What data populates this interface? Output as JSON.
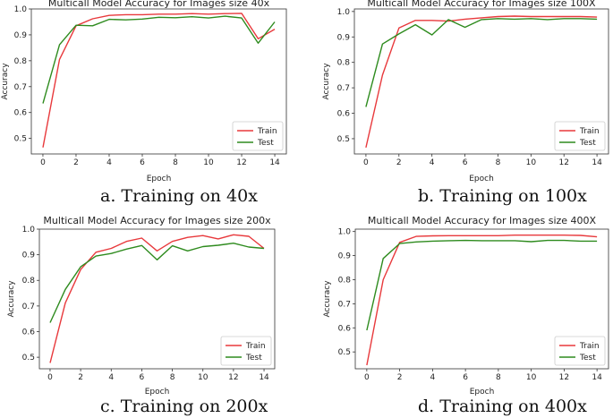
{
  "chart_data": [
    {
      "type": "line",
      "title": "Multicall Model Accuracy for Images size 40x",
      "xlabel": "Epoch",
      "ylabel": "Accuracy",
      "xlim": [
        -0.7,
        14.7
      ],
      "ylim": [
        0.44,
        1.0
      ],
      "xticks": [
        0,
        2,
        4,
        6,
        8,
        10,
        12,
        14
      ],
      "yticks": [
        0.5,
        0.6,
        0.7,
        0.8,
        0.9,
        1.0
      ],
      "ytick_labels": [
        "0.5",
        "0.6",
        "0.7",
        "0.8",
        "0.9",
        "1.0"
      ],
      "legend": "lower-right",
      "x": [
        0,
        1,
        2,
        3,
        4,
        5,
        6,
        7,
        8,
        9,
        10,
        11,
        12,
        13,
        14
      ],
      "series": [
        {
          "name": "Train",
          "color": "#e8393c",
          "values": [
            0.465,
            0.805,
            0.935,
            0.962,
            0.975,
            0.978,
            0.978,
            0.98,
            0.98,
            0.982,
            0.98,
            0.982,
            0.983,
            0.885,
            0.922
          ]
        },
        {
          "name": "Test",
          "color": "#2e8b1e",
          "values": [
            0.635,
            0.862,
            0.937,
            0.935,
            0.96,
            0.958,
            0.961,
            0.968,
            0.966,
            0.97,
            0.965,
            0.972,
            0.965,
            0.868,
            0.95
          ]
        }
      ],
      "caption": "a. Training on 40x"
    },
    {
      "type": "line",
      "title": "Multicall Model Accuracy for Images size 100X",
      "xlabel": "Epoch",
      "ylabel": "Accuracy",
      "xlim": [
        -0.7,
        14.7
      ],
      "ylim": [
        0.44,
        1.01
      ],
      "xticks": [
        0,
        2,
        4,
        6,
        8,
        10,
        12,
        14
      ],
      "yticks": [
        0.5,
        0.6,
        0.7,
        0.8,
        0.9,
        1.0
      ],
      "ytick_labels": [
        "0.5",
        "0.6",
        "0.7",
        "0.8",
        "0.9",
        "1.0"
      ],
      "legend": "lower-right",
      "x": [
        0,
        1,
        2,
        3,
        4,
        5,
        6,
        7,
        8,
        9,
        10,
        11,
        12,
        13,
        14
      ],
      "series": [
        {
          "name": "Train",
          "color": "#e8393c",
          "values": [
            0.465,
            0.75,
            0.935,
            0.965,
            0.965,
            0.962,
            0.97,
            0.975,
            0.98,
            0.982,
            0.98,
            0.98,
            0.98,
            0.98,
            0.978
          ]
        },
        {
          "name": "Test",
          "color": "#2e8b1e",
          "values": [
            0.625,
            0.872,
            0.912,
            0.948,
            0.908,
            0.968,
            0.938,
            0.968,
            0.972,
            0.97,
            0.972,
            0.968,
            0.972,
            0.972,
            0.97
          ]
        }
      ],
      "caption": "b. Training on 100x"
    },
    {
      "type": "line",
      "title": "Multicall Model Accuracy for Images size 200x",
      "xlabel": "Epoch",
      "ylabel": "Accuracy",
      "xlim": [
        -0.7,
        14.7
      ],
      "ylim": [
        0.455,
        1.0
      ],
      "xticks": [
        0,
        2,
        4,
        6,
        8,
        10,
        12,
        14
      ],
      "yticks": [
        0.5,
        0.6,
        0.7,
        0.8,
        0.9,
        1.0
      ],
      "ytick_labels": [
        "0.5",
        "0.6",
        "0.7",
        "0.8",
        "0.9",
        "1.0"
      ],
      "legend": "lower-right",
      "x": [
        0,
        1,
        2,
        3,
        4,
        5,
        6,
        7,
        8,
        9,
        10,
        11,
        12,
        13,
        14
      ],
      "series": [
        {
          "name": "Train",
          "color": "#e8393c",
          "values": [
            0.478,
            0.712,
            0.842,
            0.91,
            0.925,
            0.952,
            0.965,
            0.915,
            0.952,
            0.968,
            0.975,
            0.962,
            0.978,
            0.972,
            0.925
          ]
        },
        {
          "name": "Test",
          "color": "#2e8b1e",
          "values": [
            0.635,
            0.765,
            0.853,
            0.895,
            0.905,
            0.922,
            0.936,
            0.88,
            0.935,
            0.915,
            0.932,
            0.937,
            0.945,
            0.93,
            0.925
          ]
        }
      ],
      "caption": "c. Training on 200x"
    },
    {
      "type": "line",
      "title": "Multicall Model Accuracy for Images size 400X",
      "xlabel": "Epoch",
      "ylabel": "Accuracy",
      "xlim": [
        -0.7,
        14.7
      ],
      "ylim": [
        0.43,
        1.01
      ],
      "xticks": [
        0,
        2,
        4,
        6,
        8,
        10,
        12,
        14
      ],
      "yticks": [
        0.5,
        0.6,
        0.7,
        0.8,
        0.9,
        1.0
      ],
      "ytick_labels": [
        "0.5",
        "0.6",
        "0.7",
        "0.8",
        "0.9",
        "1.0"
      ],
      "legend": "lower-right",
      "x": [
        0,
        1,
        2,
        3,
        4,
        5,
        6,
        7,
        8,
        9,
        10,
        11,
        12,
        13,
        14
      ],
      "series": [
        {
          "name": "Train",
          "color": "#e8393c",
          "values": [
            0.445,
            0.8,
            0.955,
            0.98,
            0.982,
            0.983,
            0.983,
            0.983,
            0.983,
            0.985,
            0.985,
            0.985,
            0.985,
            0.984,
            0.978
          ]
        },
        {
          "name": "Test",
          "color": "#2e8b1e",
          "values": [
            0.59,
            0.888,
            0.95,
            0.957,
            0.96,
            0.962,
            0.963,
            0.962,
            0.962,
            0.962,
            0.958,
            0.963,
            0.963,
            0.96,
            0.96
          ]
        }
      ],
      "caption": "d. Training on 400x"
    }
  ]
}
